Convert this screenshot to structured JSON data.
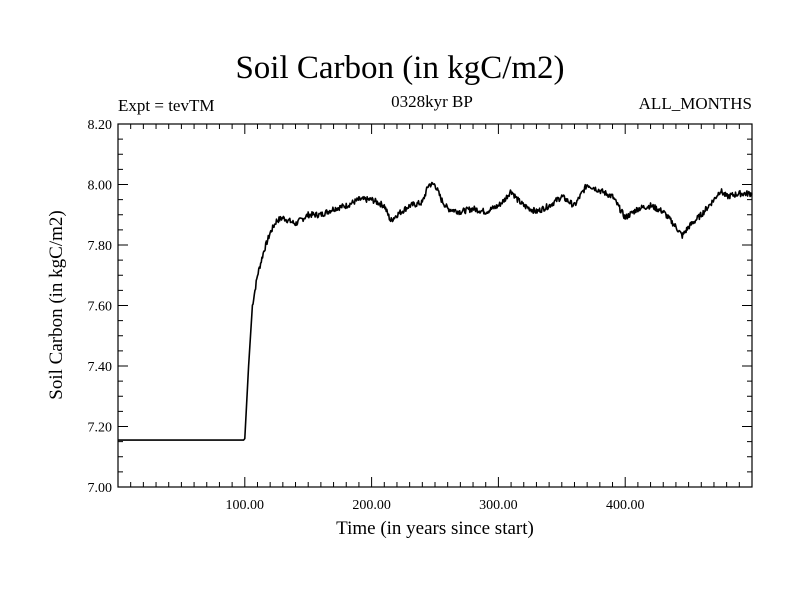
{
  "chart_data": {
    "type": "line",
    "title": "Soil Carbon (in kgC/m2)",
    "subtitle_left": "Expt = tevTM",
    "subtitle_center": "0328kyr BP",
    "subtitle_right": "ALL_MONTHS",
    "xlabel": "Time (in years since start)",
    "ylabel": "Soil Carbon (in kgC/m2)",
    "xlim": [
      0,
      500
    ],
    "ylim": [
      7.0,
      8.2
    ],
    "x_ticks": [
      100,
      200,
      300,
      400
    ],
    "x_tick_labels": [
      "100.00",
      "200.00",
      "300.00",
      "400.00"
    ],
    "y_ticks": [
      7.0,
      7.2,
      7.4,
      7.6,
      7.8,
      8.0,
      8.2
    ],
    "y_tick_labels": [
      "7.00",
      "7.20",
      "7.40",
      "7.60",
      "7.80",
      "8.00",
      "8.20"
    ],
    "grid": false,
    "series": [
      {
        "color": "#000000",
        "x": [
          0,
          99,
          100,
          103,
          106,
          110,
          115,
          120,
          125,
          130,
          140,
          150,
          160,
          170,
          180,
          190,
          200,
          210,
          215,
          220,
          230,
          240,
          245,
          250,
          255,
          260,
          270,
          280,
          290,
          300,
          305,
          310,
          315,
          320,
          330,
          340,
          350,
          360,
          370,
          380,
          390,
          400,
          410,
          420,
          430,
          440,
          445,
          450,
          460,
          470,
          475,
          480,
          490,
          500
        ],
        "y": [
          7.155,
          7.155,
          7.16,
          7.4,
          7.6,
          7.7,
          7.78,
          7.84,
          7.88,
          7.89,
          7.87,
          7.9,
          7.9,
          7.92,
          7.93,
          7.95,
          7.95,
          7.93,
          7.88,
          7.9,
          7.93,
          7.94,
          8.0,
          8.0,
          7.95,
          7.92,
          7.91,
          7.92,
          7.91,
          7.93,
          7.95,
          7.98,
          7.95,
          7.93,
          7.91,
          7.93,
          7.96,
          7.93,
          8.0,
          7.98,
          7.96,
          7.89,
          7.92,
          7.93,
          7.91,
          7.86,
          7.83,
          7.86,
          7.9,
          7.95,
          7.98,
          7.96,
          7.97,
          7.97
        ]
      }
    ]
  }
}
